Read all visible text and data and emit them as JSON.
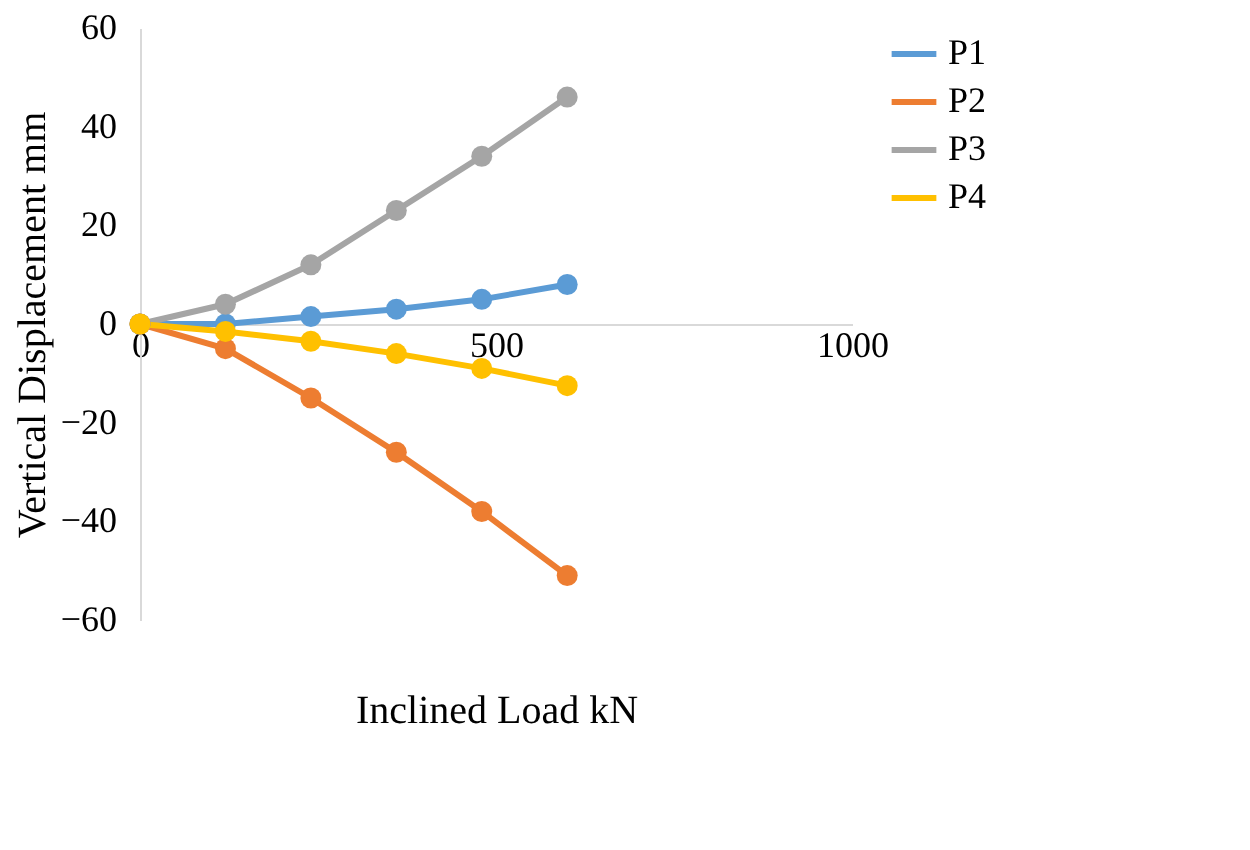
{
  "chart_data": {
    "type": "line",
    "xlabel": "Inclined Load kN",
    "ylabel": "Vertical Displacement mm",
    "x": [
      0,
      120,
      240,
      360,
      480,
      600
    ],
    "series": [
      {
        "name": "P1",
        "color": "#5b9bd5",
        "values": [
          0,
          0,
          1.5,
          3,
          5,
          8
        ]
      },
      {
        "name": "P2",
        "color": "#ed7d31",
        "values": [
          0,
          -5,
          -15,
          -26,
          -38,
          -51
        ]
      },
      {
        "name": "P3",
        "color": "#a5a5a5",
        "values": [
          0,
          4,
          12,
          23,
          34,
          46
        ]
      },
      {
        "name": "P4",
        "color": "#ffc000",
        "values": [
          0,
          -1.5,
          -3.5,
          -6,
          -9,
          -12.5
        ]
      }
    ],
    "xlim": [
      0,
      1000
    ],
    "xticks": [
      0,
      500,
      1000
    ],
    "ylim": [
      -60,
      60
    ],
    "yticks": [
      -60,
      -40,
      -20,
      0,
      20,
      40,
      60
    ],
    "grid": false,
    "legend": "right",
    "marker": "circle",
    "line_style": "solid"
  }
}
